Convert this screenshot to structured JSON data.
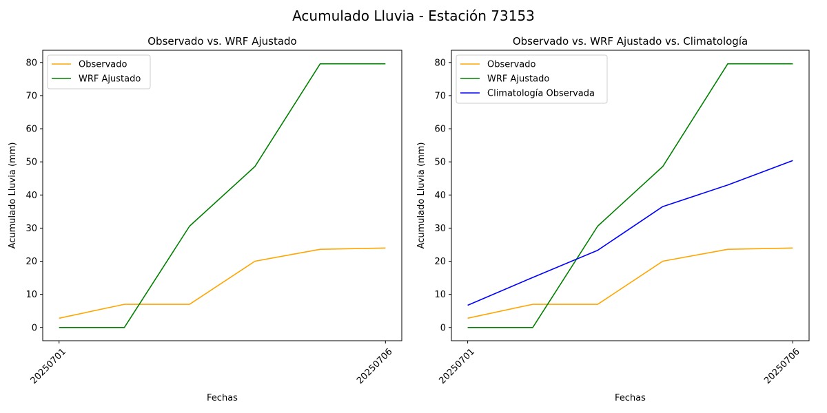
{
  "figure": {
    "title": "Acumulado Lluvia - Estación 73153"
  },
  "chart_data": [
    {
      "type": "line",
      "title": "Observado vs. WRF Ajustado",
      "xlabel": "Fechas",
      "ylabel": "Acumulado Lluvia (mm)",
      "x": [
        "20250701",
        "20250702",
        "20250703",
        "20250704",
        "20250705",
        "20250706"
      ],
      "xticks": [
        "20250701",
        "20250706"
      ],
      "yticks": [
        0,
        10,
        20,
        30,
        40,
        50,
        60,
        70,
        80
      ],
      "ylim": [
        -4,
        83.7
      ],
      "grid": false,
      "legend": "top-left",
      "series": [
        {
          "name": "Observado",
          "color": "#ffa500",
          "values": [
            2.8,
            7.0,
            7.0,
            20.0,
            23.6,
            24.0
          ]
        },
        {
          "name": "WRF Ajustado",
          "color": "#008000",
          "values": [
            0,
            0,
            30.6,
            48.6,
            79.6,
            79.6
          ]
        }
      ]
    },
    {
      "type": "line",
      "title": "Observado vs. WRF Ajustado vs. Climatología",
      "xlabel": "Fechas",
      "ylabel": "Acumulado Lluvia (mm)",
      "x": [
        "20250701",
        "20250702",
        "20250703",
        "20250704",
        "20250705",
        "20250706"
      ],
      "xticks": [
        "20250701",
        "20250706"
      ],
      "yticks": [
        0,
        10,
        20,
        30,
        40,
        50,
        60,
        70,
        80
      ],
      "ylim": [
        -4,
        83.7
      ],
      "grid": false,
      "legend": "top-left",
      "series": [
        {
          "name": "Observado",
          "color": "#ffa500",
          "values": [
            2.8,
            7.0,
            7.0,
            20.0,
            23.6,
            24.0
          ]
        },
        {
          "name": "WRF Ajustado",
          "color": "#008000",
          "values": [
            0,
            0,
            30.6,
            48.6,
            79.6,
            79.6
          ]
        },
        {
          "name": "Climatología Observada",
          "color": "#0000ff",
          "values": [
            6.7,
            15.1,
            23.3,
            36.5,
            43.0,
            50.4
          ]
        }
      ]
    }
  ]
}
